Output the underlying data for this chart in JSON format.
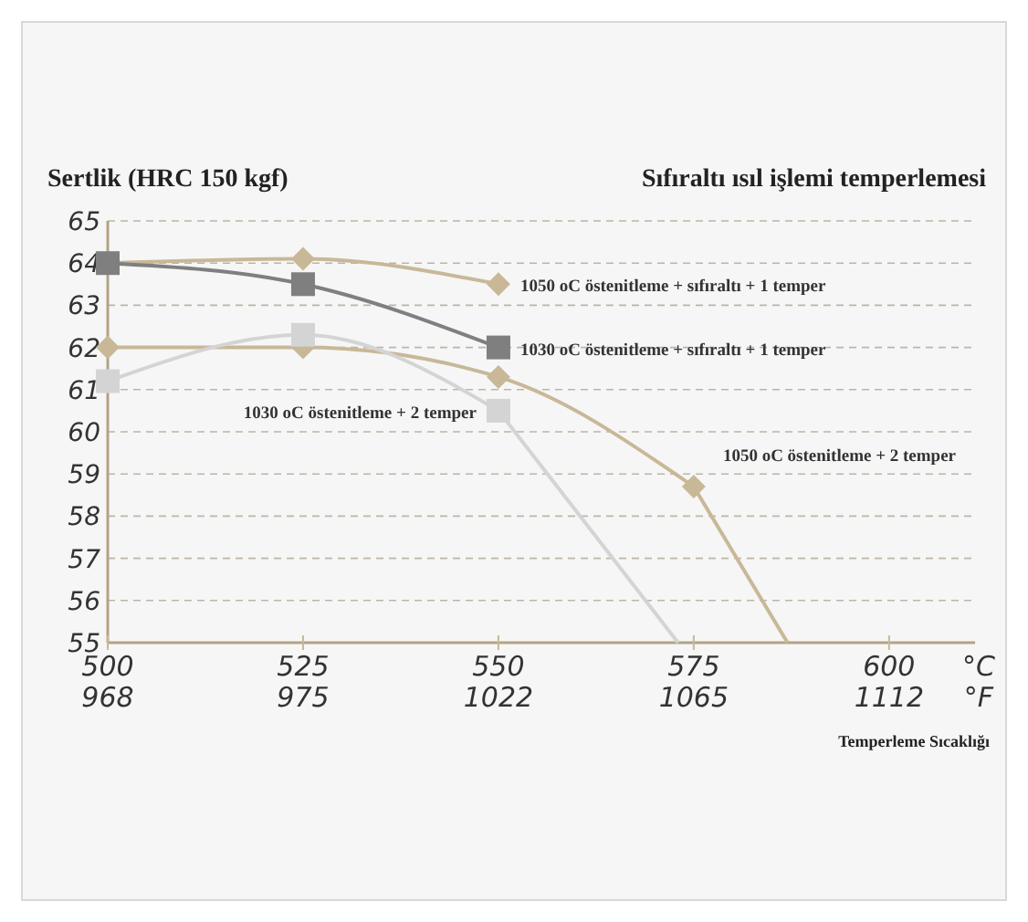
{
  "chart_data": {
    "type": "line",
    "title": "Sıfıraltı ısıl işlemi  temperlemesi",
    "ylabel": "Sertlik (HRC 150 kgf)",
    "xlabel": "Temperleme Sıcaklığı",
    "xlim": [
      500,
      611
    ],
    "xticks": [
      500,
      525,
      550,
      575,
      600
    ],
    "ylim": [
      55,
      65
    ],
    "yticks": [
      55,
      56,
      57,
      58,
      59,
      60,
      61,
      62,
      63,
      64,
      65
    ],
    "grid": "y",
    "line_style": "solid",
    "series": [
      {
        "name": "1050 oC östenitleme + sıfıraltı + 1 temper",
        "color": "#c8b898",
        "marker": "diamond",
        "x": [
          500,
          525,
          550
        ],
        "values": [
          64,
          64.1,
          63.5
        ]
      },
      {
        "name": "1030 oC östenitleme + sıfıraltı + 1 temper",
        "color": "#7f7f7f",
        "marker": "square",
        "x": [
          500,
          525,
          550
        ],
        "values": [
          64,
          63.5,
          62
        ]
      },
      {
        "name": "1050 oC östenitleme + 2 temper",
        "color": "#c8b898",
        "marker": "diamond",
        "x": [
          500,
          525,
          550,
          575
        ],
        "values": [
          62,
          62,
          61.3,
          58.7
        ]
      },
      {
        "color": "#c8b898",
        "marker": "none",
        "x": [
          575,
          587
        ],
        "values": [
          58.7,
          55
        ]
      },
      {
        "name": "1030 oC östenitleme + 2 temper",
        "color": "#d4d4d4",
        "marker": "square",
        "x": [
          500,
          525,
          550
        ],
        "values": [
          61.2,
          62.3,
          60.5
        ]
      },
      {
        "color": "#d4d4d4",
        "marker": "none",
        "x": [
          550,
          573
        ],
        "values": [
          60.5,
          55
        ]
      }
    ],
    "annotations": [
      "968",
      "975",
      "1022",
      "1065",
      "1112",
      "°C",
      "°F"
    ]
  }
}
